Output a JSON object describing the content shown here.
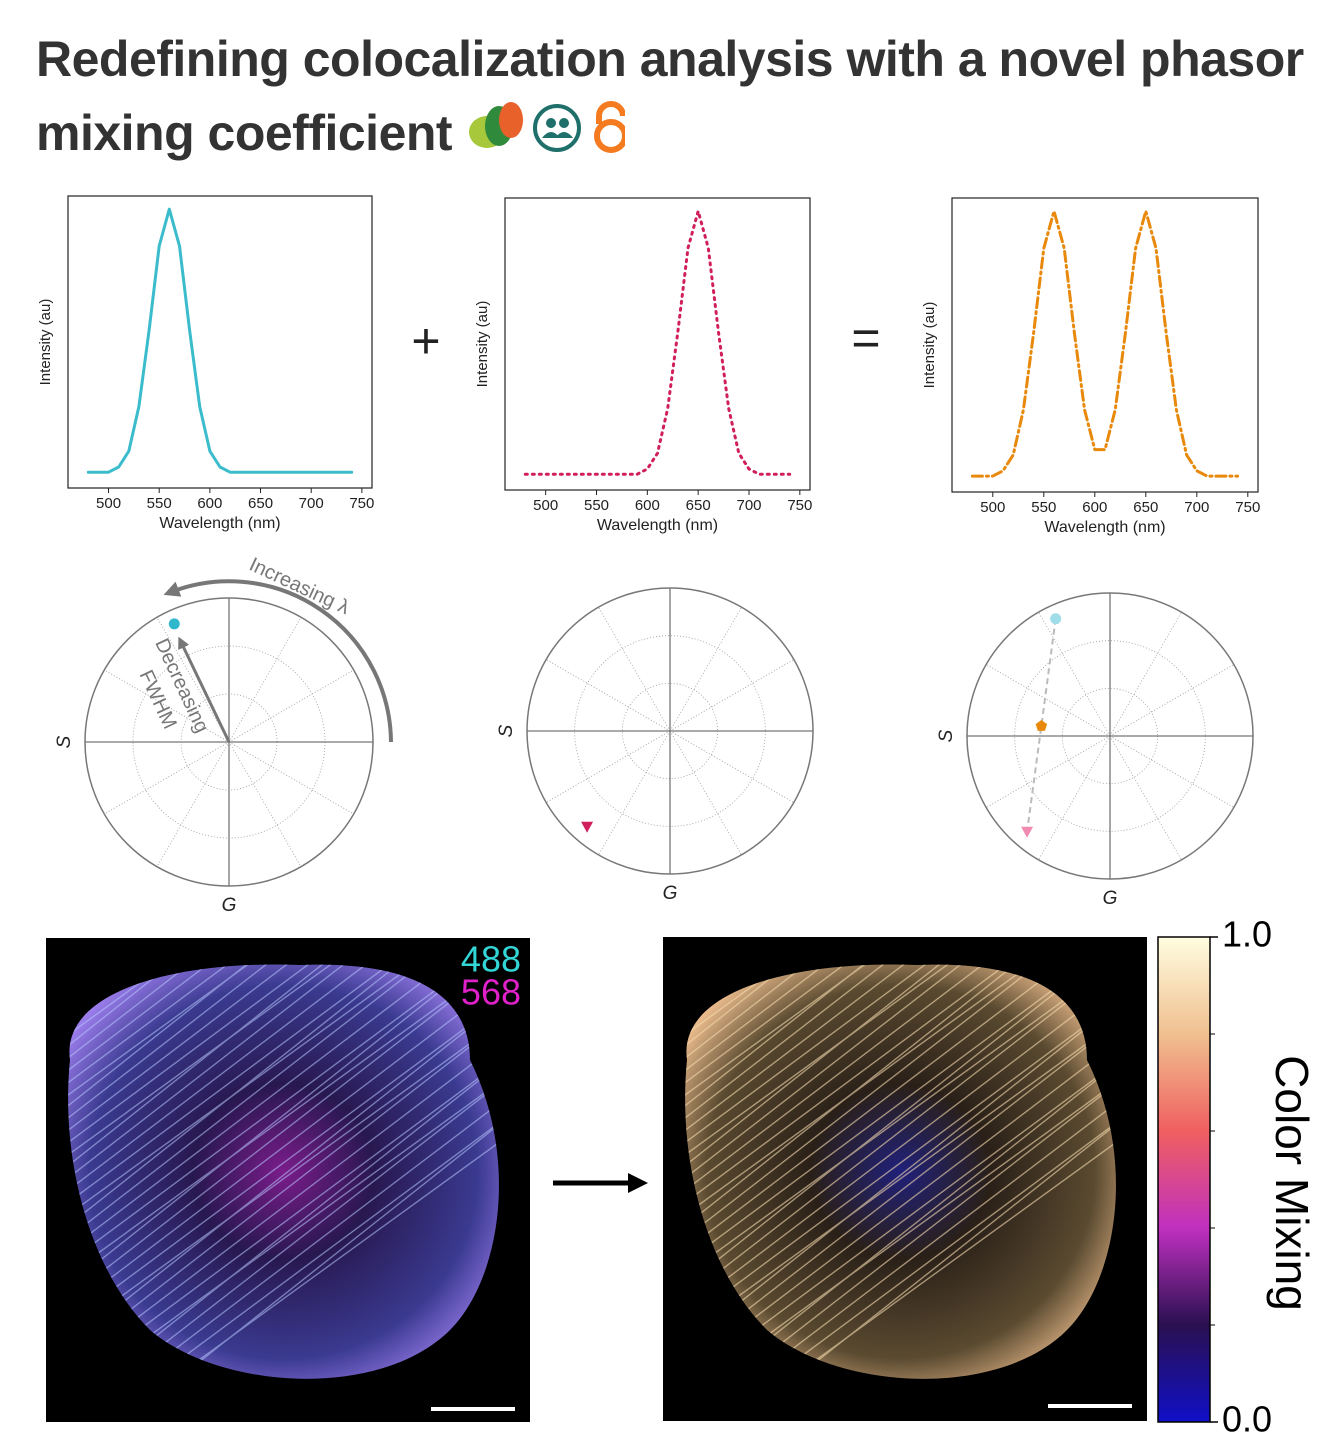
{
  "title": "Redefining colocalization analysis with a novel phasor mixing coefficient",
  "operators": [
    "+",
    "="
  ],
  "chart_data": [
    {
      "type": "line",
      "x": [
        480,
        490,
        500,
        510,
        520,
        530,
        540,
        550,
        560,
        570,
        580,
        590,
        600,
        610,
        620,
        630,
        640,
        650,
        660,
        670,
        680,
        690,
        700,
        710,
        720,
        730,
        740
      ],
      "values": [
        0,
        0,
        0,
        0.02,
        0.08,
        0.25,
        0.54,
        0.86,
        1,
        0.86,
        0.54,
        0.25,
        0.08,
        0.02,
        0,
        0,
        0,
        0,
        0,
        0,
        0,
        0,
        0,
        0,
        0,
        0,
        0
      ],
      "color": "#3bbccc",
      "line_style": "solid",
      "xlim": [
        460,
        760
      ],
      "ylim": [
        -0.06,
        1.05
      ],
      "xticks": [
        500,
        550,
        600,
        650,
        700,
        750
      ],
      "xlabel": "Wavelength (nm)",
      "ylabel": "Intensity (au)"
    },
    {
      "type": "line",
      "x": [
        480,
        490,
        500,
        510,
        520,
        530,
        540,
        550,
        560,
        570,
        580,
        590,
        600,
        610,
        620,
        630,
        640,
        650,
        660,
        670,
        680,
        690,
        700,
        710,
        720,
        730,
        740
      ],
      "values": [
        0,
        0,
        0,
        0,
        0,
        0,
        0,
        0,
        0,
        0,
        0,
        0,
        0.02,
        0.08,
        0.25,
        0.54,
        0.86,
        1,
        0.86,
        0.54,
        0.25,
        0.08,
        0.02,
        0,
        0,
        0,
        0
      ],
      "color": "#d11f5e",
      "line_style": "dotted",
      "xlim": [
        460,
        760
      ],
      "ylim": [
        -0.06,
        1.05
      ],
      "xticks": [
        500,
        550,
        600,
        650,
        700,
        750
      ],
      "xlabel": "Wavelength (nm)",
      "ylabel": "Intensity (au)"
    },
    {
      "type": "line",
      "x": [
        480,
        490,
        500,
        510,
        520,
        530,
        540,
        550,
        560,
        570,
        580,
        590,
        600,
        610,
        620,
        630,
        640,
        650,
        660,
        670,
        680,
        690,
        700,
        710,
        720,
        730,
        740
      ],
      "values": [
        0,
        0,
        0,
        0.02,
        0.08,
        0.25,
        0.54,
        0.86,
        1,
        0.86,
        0.54,
        0.25,
        0.1,
        0.1,
        0.25,
        0.54,
        0.86,
        1,
        0.86,
        0.54,
        0.25,
        0.08,
        0.02,
        0,
        0,
        0,
        0
      ],
      "color": "#e8890c",
      "line_style": "dashdot",
      "xlim": [
        460,
        760
      ],
      "ylim": [
        -0.06,
        1.05
      ],
      "xticks": [
        500,
        550,
        600,
        650,
        700,
        750
      ],
      "xlabel": "Wavelength (nm)",
      "ylabel": "Intensity (au)"
    },
    {
      "type": "phasor",
      "xlabel": "G",
      "ylabel": "S",
      "xlim": [
        -1,
        1
      ],
      "ylim": [
        -1,
        1
      ],
      "points": [
        {
          "x": -0.38,
          "y": 0.82,
          "color": "#2fb8cc",
          "marker": "circle"
        }
      ],
      "annotations": [
        "Increasing λ",
        "Decreasing",
        "FWHM"
      ]
    },
    {
      "type": "phasor",
      "xlabel": "G",
      "ylabel": "S",
      "xlim": [
        -1,
        1
      ],
      "ylim": [
        -1,
        1
      ],
      "points": [
        {
          "x": -0.58,
          "y": -0.67,
          "color": "#d11f5e",
          "marker": "triangle"
        }
      ]
    },
    {
      "type": "phasor",
      "xlabel": "G",
      "ylabel": "S",
      "xlim": [
        -1,
        1
      ],
      "ylim": [
        -1,
        1
      ],
      "connector": true,
      "points": [
        {
          "x": -0.38,
          "y": 0.82,
          "color": "#9fdde8",
          "marker": "circle"
        },
        {
          "x": -0.48,
          "y": 0.07,
          "color": "#e8890c",
          "marker": "pentagon"
        },
        {
          "x": -0.58,
          "y": -0.67,
          "color": "#f08ab0",
          "marker": "triangle"
        }
      ]
    }
  ],
  "images": [
    {
      "labels": [
        {
          "text": "488",
          "color": "#33d6d6"
        },
        {
          "text": "568",
          "color": "#e020c8"
        }
      ]
    },
    {
      "colorbar": {
        "label": "Color Mixing",
        "colors": [
          "#1010c8",
          "#2a1050",
          "#c030c0",
          "#f06060",
          "#f0c090",
          "#fffde0"
        ],
        "ticks": [
          {
            "value": 0,
            "label": "0.0"
          },
          {
            "value": 1,
            "label": "1.0"
          }
        ],
        "minor_ticks": [
          0.2,
          0.4,
          0.6,
          0.8
        ]
      }
    }
  ]
}
